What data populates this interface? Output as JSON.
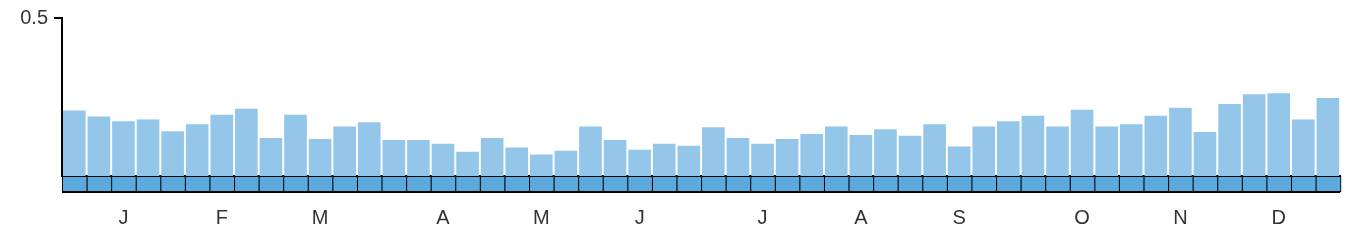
{
  "chart_data": {
    "type": "bar",
    "categories": [
      null,
      null,
      "J",
      null,
      null,
      null,
      "F",
      null,
      null,
      null,
      "M",
      null,
      null,
      null,
      null,
      "A",
      null,
      null,
      null,
      "M",
      null,
      null,
      null,
      "J",
      null,
      null,
      null,
      null,
      "J",
      null,
      null,
      null,
      "A",
      null,
      null,
      null,
      "S",
      null,
      null,
      null,
      null,
      "O",
      null,
      null,
      null,
      "N",
      null,
      null,
      null,
      "D",
      null,
      null
    ],
    "values": [
      0.207,
      0.188,
      0.173,
      0.179,
      0.142,
      0.164,
      0.194,
      0.213,
      0.12,
      0.194,
      0.117,
      0.157,
      0.17,
      0.114,
      0.114,
      0.102,
      0.077,
      0.12,
      0.09,
      0.068,
      0.08,
      0.157,
      0.114,
      0.083,
      0.102,
      0.096,
      0.154,
      0.12,
      0.102,
      0.117,
      0.133,
      0.157,
      0.13,
      0.148,
      0.127,
      0.164,
      0.093,
      0.157,
      0.173,
      0.191,
      0.157,
      0.21,
      0.157,
      0.164,
      0.191,
      0.216,
      0.139,
      0.228,
      0.259,
      0.262,
      0.179,
      0.247
    ],
    "color": "#93c6e8",
    "ylim": [
      0,
      0.5
    ],
    "yticks": [
      0.5
    ],
    "grid": false
  }
}
